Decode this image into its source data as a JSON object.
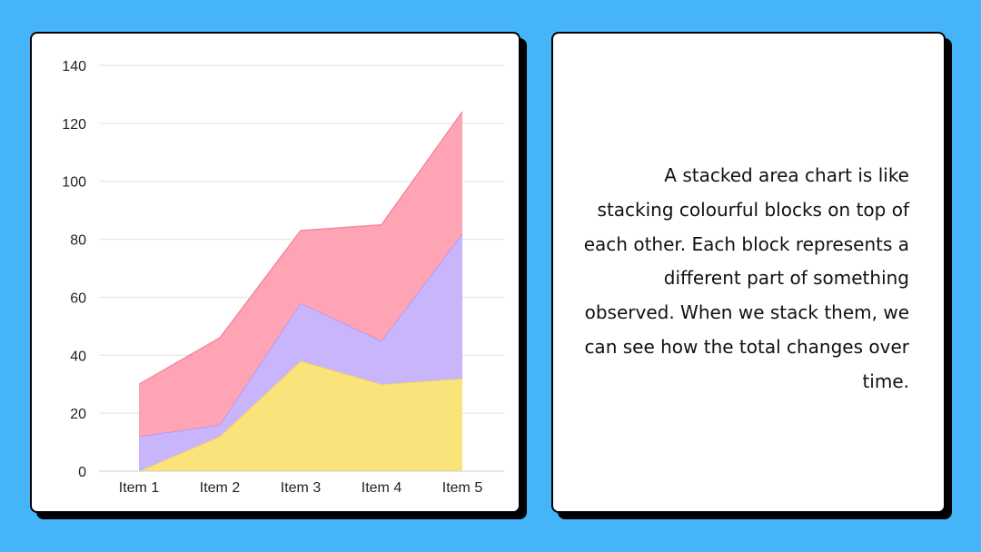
{
  "colors": {
    "background": "#45b4f9",
    "card": "#ffffff"
  },
  "chart_data": {
    "type": "area",
    "stacked": true,
    "categories": [
      "Item 1",
      "Item 2",
      "Item 3",
      "Item 4",
      "Item 5"
    ],
    "series": [
      {
        "values": [
          0,
          12,
          38,
          30,
          32
        ],
        "color": "#fbe37c",
        "stroke": "#f5d44a"
      },
      {
        "values": [
          12,
          4,
          20,
          15,
          50
        ],
        "color": "#c8b5fc",
        "stroke": "#ad93f7"
      },
      {
        "values": [
          18,
          30,
          25,
          40,
          42
        ],
        "color": "#ffa4b4",
        "stroke": "#f48aa0"
      }
    ],
    "ylim": [
      0,
      140
    ],
    "yticks": [
      0,
      20,
      40,
      60,
      80,
      100,
      120,
      140
    ],
    "grid": true,
    "legend": "none"
  },
  "description": "A stacked area chart is like stacking colourful blocks on top of each other. Each block represents a different part of something observed. When we stack them, we can see how the total changes over time."
}
